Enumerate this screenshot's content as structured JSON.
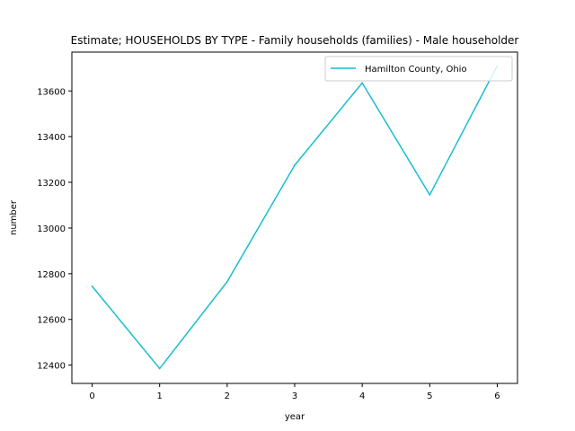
{
  "chart_data": {
    "type": "line",
    "title": "Estimate; HOUSEHOLDS BY TYPE - Family households (families) - Male householder",
    "xlabel": "year",
    "ylabel": "number",
    "x": [
      0,
      1,
      2,
      3,
      4,
      5,
      6
    ],
    "xlim": [
      -0.3,
      6.3
    ],
    "ylim": [
      12320,
      13770
    ],
    "xticks": [
      0,
      1,
      2,
      3,
      4,
      5,
      6
    ],
    "yticks": [
      12400,
      12600,
      12800,
      13000,
      13200,
      13400,
      13600
    ],
    "grid": false,
    "legend_position": "top-right",
    "series": [
      {
        "name": "Hamilton County, Ohio",
        "color": "#17becf",
        "values": [
          12745,
          12385,
          12765,
          13275,
          13635,
          13145,
          13710
        ]
      }
    ]
  }
}
